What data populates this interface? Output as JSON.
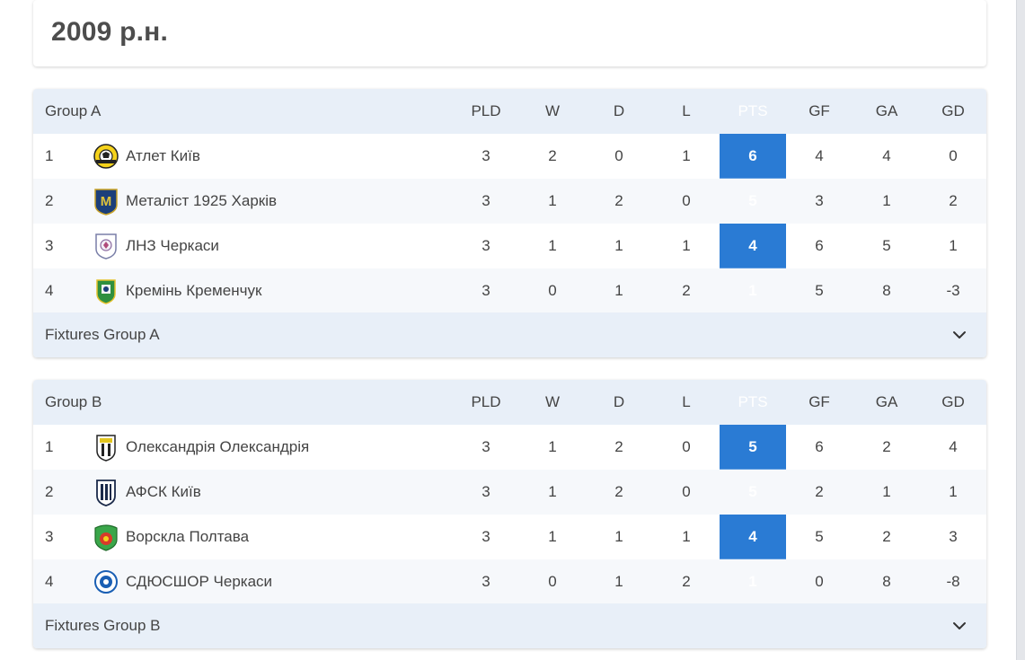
{
  "page_title": "2009 р.н.",
  "columns": [
    "PLD",
    "W",
    "D",
    "L",
    "PTS",
    "GF",
    "GA",
    "GD"
  ],
  "groups": [
    {
      "name": "Group A",
      "fixtures_label": "Fixtures Group A",
      "rows": [
        {
          "pos": "1",
          "team": "Атлет Київ",
          "logo": "atlet-kyiv-crest",
          "pld": "3",
          "w": "2",
          "d": "0",
          "l": "1",
          "pts": "6",
          "gf": "4",
          "ga": "4",
          "gd": "0"
        },
        {
          "pos": "2",
          "team": "Металіст 1925 Харків",
          "logo": "metalist-1925-crest",
          "pld": "3",
          "w": "1",
          "d": "2",
          "l": "0",
          "pts": "5",
          "gf": "3",
          "ga": "1",
          "gd": "2"
        },
        {
          "pos": "3",
          "team": "ЛНЗ Черкаси",
          "logo": "lnz-cherkasy-crest",
          "pld": "3",
          "w": "1",
          "d": "1",
          "l": "1",
          "pts": "4",
          "gf": "6",
          "ga": "5",
          "gd": "1"
        },
        {
          "pos": "4",
          "team": "Кремінь Кременчук",
          "logo": "kremin-crest",
          "pld": "3",
          "w": "0",
          "d": "1",
          "l": "2",
          "pts": "1",
          "gf": "5",
          "ga": "8",
          "gd": "-3"
        }
      ]
    },
    {
      "name": "Group B",
      "fixtures_label": "Fixtures Group B",
      "rows": [
        {
          "pos": "1",
          "team": "Олександрія Олександрія",
          "logo": "oleksandriya-crest",
          "pld": "3",
          "w": "1",
          "d": "2",
          "l": "0",
          "pts": "5",
          "gf": "6",
          "ga": "2",
          "gd": "4"
        },
        {
          "pos": "2",
          "team": "АФСК Київ",
          "logo": "afsk-kyiv-crest",
          "pld": "3",
          "w": "1",
          "d": "2",
          "l": "0",
          "pts": "5",
          "gf": "2",
          "ga": "1",
          "gd": "1"
        },
        {
          "pos": "3",
          "team": "Ворскла Полтава",
          "logo": "vorskla-crest",
          "pld": "3",
          "w": "1",
          "d": "1",
          "l": "1",
          "pts": "4",
          "gf": "5",
          "ga": "2",
          "gd": "3"
        },
        {
          "pos": "4",
          "team": "СДЮСШОР Черкаси",
          "logo": "sdyusshor-crest",
          "pld": "3",
          "w": "0",
          "d": "1",
          "l": "2",
          "pts": "1",
          "gf": "0",
          "ga": "8",
          "gd": "-8"
        }
      ]
    }
  ],
  "colors": {
    "accent": "#2a7bd4",
    "header_bg": "#e8eff8",
    "alt_row_bg": "#f6f8fb"
  },
  "icons": {
    "expand": "chevron-down-icon"
  }
}
